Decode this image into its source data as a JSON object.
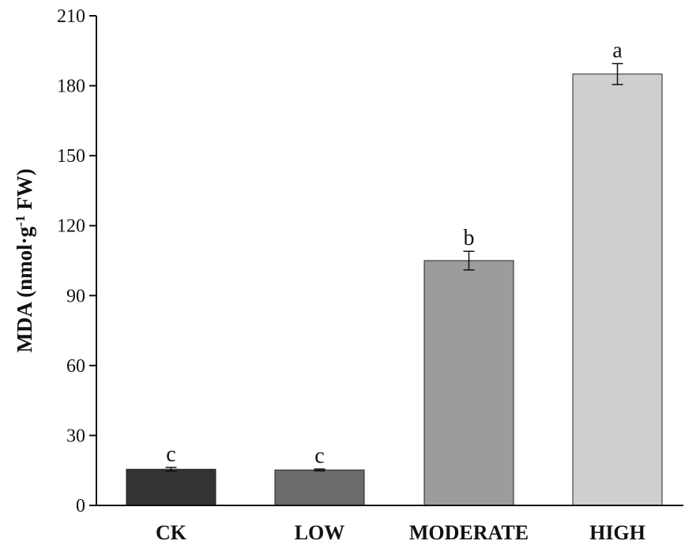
{
  "chart_data": {
    "type": "bar",
    "title": "",
    "xlabel": "",
    "ylabel": {
      "prefix": "MDA (nmol·g",
      "superscript": "-1",
      "suffix": " FW)"
    },
    "ylim": [
      0,
      210
    ],
    "yticks": [
      0,
      30,
      60,
      90,
      120,
      150,
      180,
      210
    ],
    "grid": false,
    "categories": [
      "CK",
      "LOW",
      "MODERATE",
      "HIGH"
    ],
    "values": [
      15.5,
      15.2,
      105,
      185
    ],
    "errors": [
      0.8,
      0.4,
      4,
      4.5
    ],
    "significance": [
      "c",
      "c",
      "b",
      "a"
    ],
    "bar_colors": [
      "#333333",
      "#6b6b6b",
      "#9c9c9c",
      "#cfcfcf"
    ]
  }
}
